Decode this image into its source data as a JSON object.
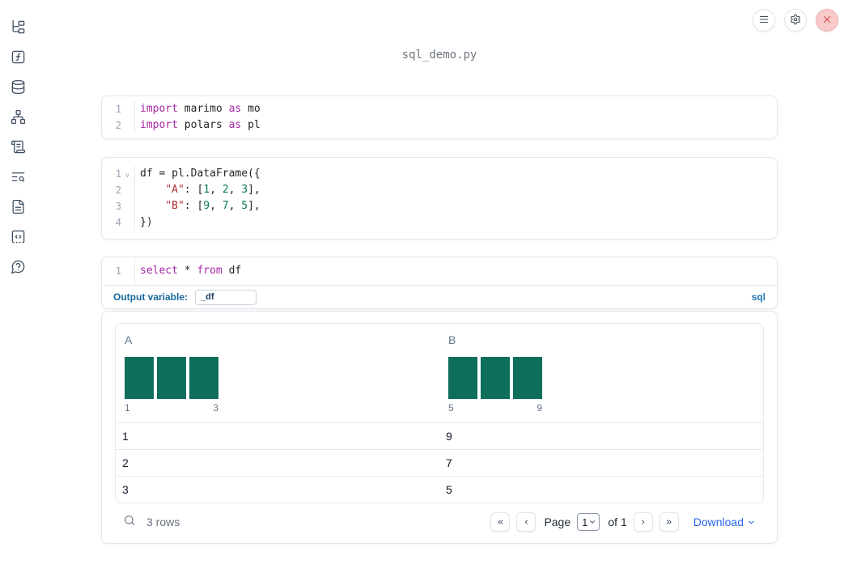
{
  "app": {
    "title": "sql_demo.py"
  },
  "colors": {
    "sidebar_icon": "#3d4b5f",
    "keyword": "#a626a4",
    "string": "#b03535",
    "number": "#0b7a54",
    "histogram_bar": "#0e6e5c",
    "output_label": "#15699c",
    "language_badge": "#2277ad",
    "download_link": "#2563eb",
    "close_button_bg": "#f8caca"
  },
  "sidebar": {
    "items": [
      {
        "icon": "file-tree"
      },
      {
        "icon": "function"
      },
      {
        "icon": "database"
      },
      {
        "icon": "dependency-graph"
      },
      {
        "icon": "scroll-logs"
      },
      {
        "icon": "text-search"
      },
      {
        "icon": "document"
      },
      {
        "icon": "code-snippets"
      },
      {
        "icon": "help-chat"
      }
    ]
  },
  "toolbar": {
    "buttons": [
      {
        "icon": "menu"
      },
      {
        "icon": "settings"
      },
      {
        "icon": "shutdown-close"
      }
    ]
  },
  "cells": [
    {
      "name": "imports-cell",
      "lines": [
        {
          "num": "1",
          "fold": false,
          "tokens": [
            {
              "t": "import",
              "c": "kw"
            },
            {
              "t": " marimo ",
              "c": "tx"
            },
            {
              "t": "as",
              "c": "kw"
            },
            {
              "t": " mo",
              "c": "tx"
            }
          ]
        },
        {
          "num": "2",
          "fold": false,
          "tokens": [
            {
              "t": "import",
              "c": "kw"
            },
            {
              "t": " polars ",
              "c": "tx"
            },
            {
              "t": "as",
              "c": "kw"
            },
            {
              "t": " pl",
              "c": "tx"
            }
          ]
        }
      ]
    },
    {
      "name": "dataframe-cell",
      "lines": [
        {
          "num": "1",
          "fold": true,
          "tokens": [
            {
              "t": "df = pl.DataFrame({",
              "c": "tx"
            }
          ]
        },
        {
          "num": "2",
          "fold": false,
          "tokens": [
            {
              "t": "    ",
              "c": "tx"
            },
            {
              "t": "\"A\"",
              "c": "str"
            },
            {
              "t": ": [",
              "c": "tx"
            },
            {
              "t": "1",
              "c": "num"
            },
            {
              "t": ", ",
              "c": "tx"
            },
            {
              "t": "2",
              "c": "num"
            },
            {
              "t": ", ",
              "c": "tx"
            },
            {
              "t": "3",
              "c": "num"
            },
            {
              "t": "],",
              "c": "tx"
            }
          ]
        },
        {
          "num": "3",
          "fold": false,
          "tokens": [
            {
              "t": "    ",
              "c": "tx"
            },
            {
              "t": "\"B\"",
              "c": "str"
            },
            {
              "t": ": [",
              "c": "tx"
            },
            {
              "t": "9",
              "c": "num"
            },
            {
              "t": ", ",
              "c": "tx"
            },
            {
              "t": "7",
              "c": "num"
            },
            {
              "t": ", ",
              "c": "tx"
            },
            {
              "t": "5",
              "c": "num"
            },
            {
              "t": "],",
              "c": "tx"
            }
          ]
        },
        {
          "num": "4",
          "fold": false,
          "tokens": [
            {
              "t": "})",
              "c": "tx"
            }
          ]
        }
      ]
    },
    {
      "name": "sql-cell",
      "lines": [
        {
          "num": "1",
          "fold": false,
          "tokens": [
            {
              "t": "select",
              "c": "kw"
            },
            {
              "t": " * ",
              "c": "tx"
            },
            {
              "t": "from",
              "c": "kw"
            },
            {
              "t": " df",
              "c": "tx"
            }
          ]
        }
      ]
    }
  ],
  "sql": {
    "output_label": "Output variable:",
    "output_value": "_df",
    "language": "sql"
  },
  "table": {
    "columns": [
      {
        "header": "A",
        "hist": {
          "bars": [
            1,
            1,
            1
          ],
          "min": "1",
          "max": "3"
        }
      },
      {
        "header": "B",
        "hist": {
          "bars": [
            1,
            1,
            1
          ],
          "min": "5",
          "max": "9"
        }
      }
    ],
    "rows": [
      [
        "1",
        "9"
      ],
      [
        "2",
        "7"
      ],
      [
        "3",
        "5"
      ]
    ],
    "footer": {
      "row_count": "3 rows",
      "pagination": {
        "first": "«",
        "prev": "‹",
        "page_label": "Page",
        "page_value": "1",
        "of_label": "of 1",
        "next": "›",
        "last": "»"
      },
      "download_label": "Download"
    }
  }
}
